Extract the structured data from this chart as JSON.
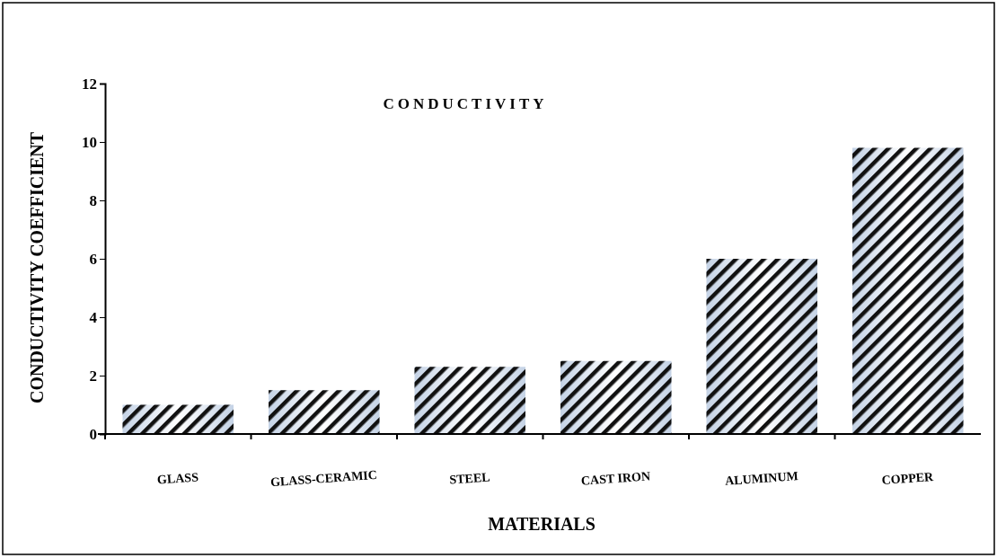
{
  "chart_data": {
    "type": "bar",
    "title": "CONDUCTIVITY",
    "xlabel": "MATERIALS",
    "ylabel": "CONDUCTIVITY COEFFICIENT",
    "categories": [
      "GLASS",
      "GLASS-CERAMIC",
      "STEEL",
      "CAST IRON",
      "ALUMINUM",
      "COPPER"
    ],
    "values": [
      1,
      1.5,
      2.3,
      2.5,
      6,
      9.8
    ],
    "color": "#c5d3e6",
    "ylim": [
      0,
      12
    ],
    "yticks": [
      0,
      2,
      4,
      6,
      8,
      10,
      12
    ],
    "grid": false
  }
}
